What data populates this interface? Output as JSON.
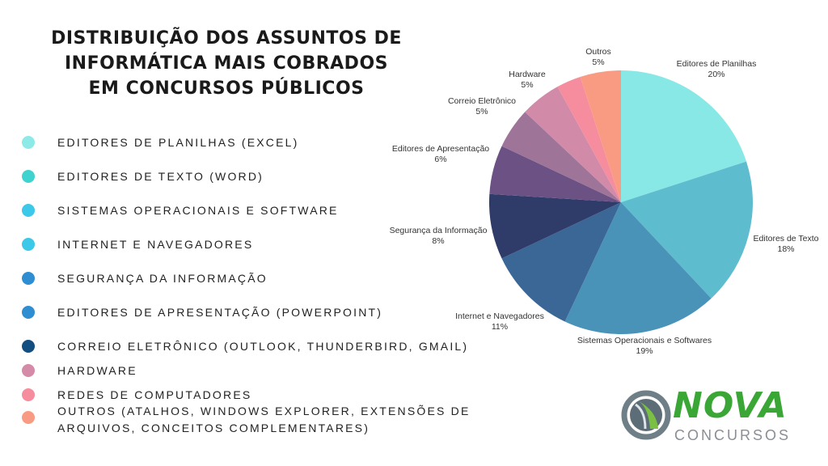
{
  "title": [
    "DISTRIBUIÇÃO DOS ASSUNTOS DE",
    "INFORMÁTICA MAIS COBRADOS",
    "EM CONCURSOS PÚBLICOS"
  ],
  "legend": [
    {
      "label": "EDITORES DE PLANILHAS (EXCEL)",
      "color": "#8eeae6"
    },
    {
      "label": "EDITORES DE TEXTO (WORD)",
      "color": "#3fd3cf"
    },
    {
      "label": "SISTEMAS OPERACIONAIS E SOFTWARE",
      "color": "#3cc8e8"
    },
    {
      "label": "INTERNET E NAVEGADORES",
      "color": "#3cc8e8"
    },
    {
      "label": "SEGURANÇA DA INFORMAÇÃO",
      "color": "#2f8ed2"
    },
    {
      "label": "EDITORES DE APRESENTAÇÃO (POWERPOINT)",
      "color": "#2f8ed2"
    },
    {
      "label": "CORREIO ELETRÔNICO (OUTLOOK, THUNDERBIRD, GMAIL)",
      "color": "#124e80"
    },
    {
      "label": "HARDWARE",
      "color": "#d58aa8"
    },
    {
      "label": "REDES DE COMPUTADORES",
      "color": "#f68d9e"
    },
    {
      "label": "OUTROS (ATALHOS, WINDOWS EXPLORER, EXTENSÕES DE",
      "label2": "ARQUIVOS, CONCEITOS COMPLEMENTARES)",
      "color": "#f99b82"
    }
  ],
  "chart_data": {
    "type": "pie",
    "title": "DISTRIBUIÇÃO DOS ASSUNTOS DE INFORMÁTICA MAIS COBRADOS EM CONCURSOS PÚBLICOS",
    "slices": [
      {
        "name": "Editores de Planilhas",
        "value": 20,
        "label": "20%",
        "color": "#88e8e6"
      },
      {
        "name": "Editores de Texto",
        "value": 18,
        "label": "18%",
        "color": "#5ebccf"
      },
      {
        "name": "Sistemas Operacionais e Softwares",
        "value": 19,
        "label": "19%",
        "color": "#4a93b8"
      },
      {
        "name": "Internet e Navegadores",
        "value": 11,
        "label": "11%",
        "color": "#3b6796"
      },
      {
        "name": "Segurança da Informação",
        "value": 8,
        "label": "8%",
        "color": "#2f3b68"
      },
      {
        "name": "Editores de Apresentação",
        "value": 6,
        "label": "6%",
        "color": "#6b5184"
      },
      {
        "name": "Correio Eletrônico",
        "value": 5,
        "label": "5%",
        "color": "#9e7499"
      },
      {
        "name": "Hardware",
        "value": 5,
        "label": "5%",
        "color": "#d18aa8"
      },
      {
        "name": "",
        "value": 3,
        "label": "",
        "color": "#f68d9e"
      },
      {
        "name": "Outros",
        "value": 5,
        "label": "5%",
        "color": "#f99b82"
      }
    ]
  },
  "logo": {
    "brand": "NOVA",
    "sub": "CONCURSOS"
  }
}
